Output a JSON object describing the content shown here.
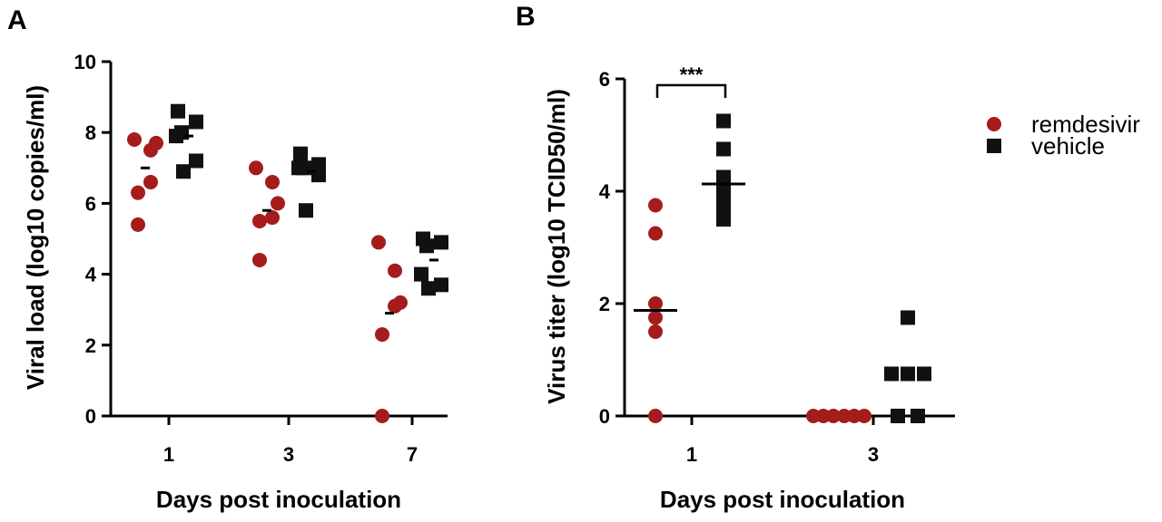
{
  "chart_data": [
    {
      "panel": "A",
      "type": "scatter",
      "title": "",
      "xlabel": "Days post inoculation",
      "ylabel": "Viral load (log10 copies/ml)",
      "categories": [
        "1",
        "3",
        "7"
      ],
      "ylim": [
        0,
        10
      ],
      "yticks": [
        0,
        2,
        4,
        6,
        8,
        10
      ],
      "series": [
        {
          "name": "remdesivir",
          "marker": "circle",
          "color": "#a51c1c",
          "values": [
            [
              7.8,
              7.5,
              7.7,
              6.6,
              6.3,
              5.4
            ],
            [
              7.0,
              6.6,
              6.0,
              5.6,
              5.5,
              4.4
            ],
            [
              4.9,
              4.1,
              3.2,
              3.1,
              2.3,
              0.0
            ]
          ],
          "means": [
            7.0,
            5.8,
            2.9
          ]
        },
        {
          "name": "vehicle",
          "marker": "square",
          "color": "#111111",
          "values": [
            [
              8.6,
              8.3,
              8.0,
              7.9,
              7.2,
              6.9
            ],
            [
              7.4,
              7.1,
              7.0,
              7.0,
              6.8,
              5.8
            ],
            [
              5.0,
              4.9,
              4.8,
              4.0,
              3.7,
              3.6
            ]
          ],
          "means": [
            7.9,
            6.9,
            4.4
          ]
        }
      ]
    },
    {
      "panel": "B",
      "type": "scatter",
      "title": "",
      "xlabel": "Days post inoculation",
      "ylabel": "Virus titer (log10 TCID50/ml)",
      "categories": [
        "1",
        "3"
      ],
      "ylim": [
        0,
        6
      ],
      "yticks": [
        0,
        2,
        4,
        6
      ],
      "series": [
        {
          "name": "remdesivir",
          "marker": "circle",
          "color": "#a51c1c",
          "values": [
            [
              3.75,
              3.25,
              2.0,
              1.75,
              1.5,
              0.0
            ],
            [
              0,
              0,
              0,
              0,
              0,
              0
            ]
          ],
          "means": [
            1.88,
            null
          ]
        },
        {
          "name": "vehicle",
          "marker": "square",
          "color": "#111111",
          "values": [
            [
              5.25,
              4.75,
              4.25,
              4.0,
              3.75,
              3.5
            ],
            [
              1.75,
              0.75,
              0.75,
              0.75,
              0.0,
              0.0
            ]
          ],
          "means": [
            4.13,
            null
          ]
        }
      ],
      "annotations": [
        {
          "text": "***",
          "between": "day 1 remdesivir vs vehicle"
        }
      ]
    }
  ],
  "legend": [
    {
      "label": "remdesivir",
      "marker": "circle",
      "color": "#a51c1c"
    },
    {
      "label": "vehicle",
      "marker": "square",
      "color": "#111111"
    }
  ],
  "panel_labels": [
    "A",
    "B"
  ],
  "icons": {
    "remdesivir_marker": "red-circle-marker",
    "vehicle_marker": "black-square-marker"
  }
}
